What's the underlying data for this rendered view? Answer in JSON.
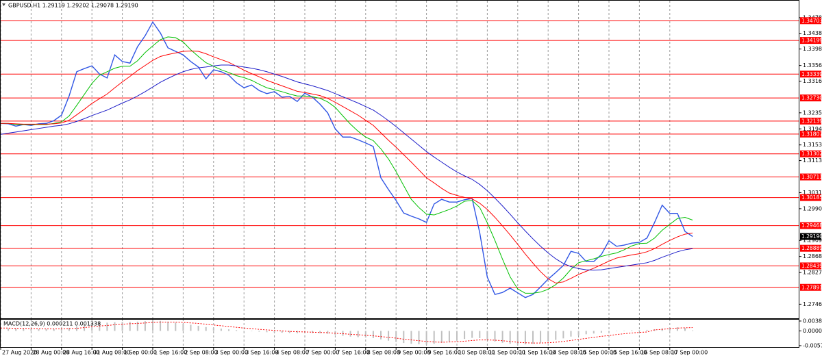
{
  "chart_data": [
    {
      "type": "line",
      "title": "GBPUSD,H1  1.29119 1.29202 1.29078 1.29190",
      "categories": [
        "27 Aug 2020",
        null,
        null,
        null,
        "28 Aug 00:00",
        null,
        null,
        null,
        "28 Aug 16:00",
        null,
        null,
        null,
        "31 Aug 08:00",
        null,
        null,
        null,
        "1 Sep 00:00",
        null,
        null,
        null,
        "1 Sep 16:00",
        null,
        null,
        null,
        "2 Sep 08:00",
        null,
        null,
        null,
        "3 Sep 00:00",
        null,
        null,
        null,
        "3 Sep 16:00",
        null,
        null,
        null,
        "4 Sep 08:00",
        null,
        null,
        null,
        "7 Sep 00:00",
        null,
        null,
        null,
        "7 Sep 16:00",
        null,
        null,
        null,
        "8 Sep 08:00",
        null,
        null,
        null,
        "9 Sep 00:00",
        null,
        null,
        null,
        "9 Sep 16:00",
        null,
        null,
        null,
        "10 Sep 08:00",
        null,
        null,
        null,
        "11 Sep 00:00",
        null,
        null,
        null,
        "11 Sep 16:00",
        null,
        null,
        null,
        "14 Sep 08:00",
        null,
        null,
        null,
        "15 Sep 00:00",
        null,
        null,
        null,
        "15 Sep 16:00",
        null,
        null,
        null,
        "16 Sep 08:00",
        null,
        null,
        null,
        "17 Sep 00:00",
        null,
        null,
        null
      ],
      "series": [
        {
          "color": "#2f55e4",
          "width": 1.4,
          "values": [
            1.3208,
            1.3207,
            1.3201,
            1.3205,
            1.3203,
            1.3207,
            1.3208,
            1.3215,
            1.3229,
            1.3278,
            1.334,
            1.3348,
            1.3355,
            1.3334,
            1.3324,
            1.3383,
            1.3366,
            1.3362,
            1.3404,
            1.3432,
            1.3467,
            1.3439,
            1.3401,
            1.3392,
            1.3383,
            1.3366,
            1.3352,
            1.3322,
            1.3345,
            1.334,
            1.3331,
            1.3312,
            1.3299,
            1.3306,
            1.3292,
            1.3284,
            1.3289,
            1.3275,
            1.3277,
            1.3264,
            1.3285,
            1.3275,
            1.3257,
            1.3235,
            1.3194,
            1.3173,
            1.3173,
            1.3166,
            1.3158,
            1.3149,
            1.3069,
            1.3039,
            1.3011,
            1.2979,
            1.2971,
            1.2964,
            1.2955,
            1.3002,
            1.3014,
            1.3007,
            1.3007,
            1.3013,
            1.3016,
            1.2929,
            1.2815,
            1.2771,
            1.2776,
            1.2787,
            1.2775,
            1.2763,
            1.2771,
            1.279,
            1.281,
            1.2827,
            1.2845,
            1.2881,
            1.2876,
            1.2855,
            1.2855,
            1.2873,
            1.2908,
            1.2894,
            1.2897,
            1.2902,
            1.2904,
            1.2915,
            1.2955,
            1.2999,
            1.2978,
            1.2978,
            1.2932,
            1.2919
          ]
        },
        {
          "color": "#00c000",
          "width": 1,
          "values": [
            1.3208,
            1.3208,
            1.3205,
            1.3205,
            1.3205,
            1.3205,
            1.3205,
            1.3208,
            1.3212,
            1.3227,
            1.3254,
            1.3282,
            1.331,
            1.3331,
            1.334,
            1.3349,
            1.3354,
            1.3354,
            1.3368,
            1.3389,
            1.3406,
            1.3422,
            1.3429,
            1.3427,
            1.3416,
            1.3396,
            1.3379,
            1.3363,
            1.3354,
            1.3345,
            1.3338,
            1.333,
            1.3325,
            1.3318,
            1.3308,
            1.3299,
            1.3294,
            1.3289,
            1.3283,
            1.3278,
            1.3278,
            1.3276,
            1.3272,
            1.3263,
            1.3249,
            1.3227,
            1.3206,
            1.3188,
            1.3173,
            1.3164,
            1.3143,
            1.3117,
            1.3085,
            1.3049,
            1.3014,
            1.2993,
            1.2976,
            1.2974,
            1.2981,
            1.2988,
            1.2997,
            1.3009,
            1.3011,
            1.2993,
            1.2954,
            1.2909,
            1.2861,
            1.2816,
            1.2785,
            1.2774,
            1.2774,
            1.2777,
            1.2784,
            1.2796,
            1.2813,
            1.2835,
            1.2852,
            1.2857,
            1.2862,
            1.2868,
            1.2873,
            1.2877,
            1.2885,
            1.2895,
            1.2901,
            1.2902,
            1.2915,
            1.2935,
            1.295,
            1.2965,
            1.2968,
            1.2961
          ]
        },
        {
          "color": "#ff0000",
          "width": 1,
          "values": [
            1.3208,
            1.3208,
            1.3207,
            1.3206,
            1.3206,
            1.3206,
            1.3206,
            1.3207,
            1.3209,
            1.3216,
            1.323,
            1.3244,
            1.3259,
            1.3271,
            1.3283,
            1.3299,
            1.3314,
            1.3328,
            1.3343,
            1.3356,
            1.3369,
            1.3379,
            1.3384,
            1.3388,
            1.3392,
            1.3393,
            1.3392,
            1.3386,
            1.3378,
            1.3371,
            1.3364,
            1.3354,
            1.3344,
            1.3335,
            1.3327,
            1.3318,
            1.3311,
            1.3304,
            1.3297,
            1.329,
            1.3287,
            1.3283,
            1.3279,
            1.3272,
            1.3262,
            1.3251,
            1.324,
            1.3229,
            1.3216,
            1.3203,
            1.3184,
            1.3165,
            1.3147,
            1.3128,
            1.3109,
            1.3089,
            1.3069,
            1.3056,
            1.3042,
            1.303,
            1.3024,
            1.3019,
            1.3015,
            1.3004,
            1.2988,
            1.2968,
            1.2946,
            1.2923,
            1.2899,
            1.2874,
            1.2851,
            1.2829,
            1.2811,
            1.28,
            1.2803,
            1.2812,
            1.2822,
            1.283,
            1.2838,
            1.2847,
            1.2856,
            1.2864,
            1.2868,
            1.2872,
            1.2875,
            1.288,
            1.2888,
            1.2899,
            1.2909,
            1.2918,
            1.2925,
            1.2928
          ]
        },
        {
          "color": "#1c1cc8",
          "width": 1,
          "values": [
            1.318,
            1.3183,
            1.3186,
            1.3189,
            1.3192,
            1.3195,
            1.3198,
            1.3201,
            1.3203,
            1.3207,
            1.3213,
            1.322,
            1.3228,
            1.3235,
            1.3242,
            1.3251,
            1.326,
            1.3268,
            1.3278,
            1.3289,
            1.3301,
            1.3313,
            1.3323,
            1.3332,
            1.334,
            1.3346,
            1.335,
            1.3352,
            1.3355,
            1.3357,
            1.3357,
            1.3355,
            1.3352,
            1.3349,
            1.3345,
            1.334,
            1.3334,
            1.3328,
            1.3321,
            1.3314,
            1.3309,
            1.3304,
            1.3298,
            1.3292,
            1.3284,
            1.3276,
            1.3268,
            1.326,
            1.3251,
            1.3242,
            1.3229,
            1.3215,
            1.32,
            1.3184,
            1.3168,
            1.3152,
            1.3136,
            1.3122,
            1.3109,
            1.3096,
            1.3084,
            1.3074,
            1.3065,
            1.3052,
            1.3036,
            1.3017,
            1.2997,
            1.2976,
            1.2954,
            1.2933,
            1.2913,
            1.2894,
            1.2877,
            1.2862,
            1.285,
            1.2842,
            1.2837,
            1.2834,
            1.2833,
            1.2834,
            1.2837,
            1.284,
            1.2843,
            1.2846,
            1.2849,
            1.2852,
            1.2858,
            1.2866,
            1.2873,
            1.288,
            1.2885,
            1.2888
          ]
        }
      ],
      "ylim": [
        1.271,
        1.3518
      ],
      "yticks": [
        {
          "value": 1.3478,
          "label": "1.34780"
        },
        {
          "value": 1.3438,
          "label": "1.34380"
        },
        {
          "value": 1.3398,
          "label": "1.33980"
        },
        {
          "value": 1.3356,
          "label": "1.33560"
        },
        {
          "value": 1.3316,
          "label": "1.33160"
        },
        {
          "value": 1.3235,
          "label": "1.32350"
        },
        {
          "value": 1.3194,
          "label": "1.31940"
        },
        {
          "value": 1.3153,
          "label": "1.31530"
        },
        {
          "value": 1.3113,
          "label": "1.31130"
        },
        {
          "value": 1.3031,
          "label": "1.30310"
        },
        {
          "value": 1.299,
          "label": "1.29900"
        },
        {
          "value": 1.2909,
          "label": "1.29090"
        },
        {
          "value": 1.2868,
          "label": "1.28680"
        },
        {
          "value": 1.2827,
          "label": "1.28270"
        },
        {
          "value": 1.2746,
          "label": "1.27460"
        }
      ],
      "levels": [
        1.34703,
        1.34199,
        1.33339,
        1.3273,
        1.32139,
        1.31807,
        1.31302,
        1.30711,
        1.30185,
        1.29468,
        1.28889,
        1.28439,
        1.27891
      ],
      "level_labels": [
        "1.34703",
        "1.34199",
        "1.33339",
        "1.32730",
        "1.32139",
        "1.31807",
        "1.31302",
        "1.30711",
        "1.30185",
        "1.29468",
        "1.28889",
        "1.28439",
        "1.27891"
      ],
      "level_color": "#ff0000",
      "last_price": {
        "value": 1.2919,
        "label": "1.29190"
      },
      "grid": true
    },
    {
      "type": "bar",
      "title": "MACD(12,26,9) 0.000211 0.001338",
      "series": [
        {
          "type": "bar",
          "color": "#c0c0c0",
          "values": [
            0.001,
            0.001,
            0.0009,
            0.0008,
            0.0008,
            0.0007,
            0.0007,
            0.0007,
            0.0008,
            0.0012,
            0.0018,
            0.0024,
            0.0029,
            0.0031,
            0.0032,
            0.0034,
            0.0035,
            0.0035,
            0.0036,
            0.0038,
            0.004,
            0.0039,
            0.0036,
            0.0032,
            0.0028,
            0.0024,
            0.002,
            0.0015,
            0.0012,
            0.0009,
            0.0006,
            0.0003,
            0.0001,
            -0.0001,
            -0.0003,
            -0.0005,
            -0.0006,
            -0.0007,
            -0.0008,
            -0.0009,
            -0.0008,
            -0.0008,
            -0.0009,
            -0.0011,
            -0.0015,
            -0.0019,
            -0.0022,
            -0.0024,
            -0.0026,
            -0.0028,
            -0.0033,
            -0.0038,
            -0.0043,
            -0.0047,
            -0.005,
            -0.0052,
            -0.0053,
            -0.005,
            -0.0046,
            -0.0041,
            -0.0036,
            -0.0031,
            -0.0027,
            -0.0028,
            -0.0034,
            -0.0041,
            -0.0046,
            -0.005,
            -0.0052,
            -0.0052,
            -0.005,
            -0.0046,
            -0.0041,
            -0.0035,
            -0.0029,
            -0.0022,
            -0.0017,
            -0.0013,
            -0.001,
            -0.0007,
            -0.0003,
            -0.0001,
            0.0001,
            0.0002,
            0.0003,
            0.0004,
            0.0006,
            0.001,
            0.0013,
            0.0014,
            0.0011,
            0.0002
          ]
        },
        {
          "type": "line",
          "color": "#ff0000",
          "values": [
            0.0011,
            0.0011,
            0.001,
            0.001,
            0.0009,
            0.0009,
            0.0008,
            0.0008,
            0.0008,
            0.0009,
            0.001,
            0.0013,
            0.0016,
            0.0019,
            0.0021,
            0.0024,
            0.0026,
            0.0028,
            0.0029,
            0.0031,
            0.0033,
            0.0034,
            0.0034,
            0.0034,
            0.0033,
            0.0031,
            0.0029,
            0.0026,
            0.0023,
            0.002,
            0.0017,
            0.0014,
            0.0011,
            0.0009,
            0.0006,
            0.0004,
            0.0002,
            0.0,
            -0.0002,
            -0.0003,
            -0.0004,
            -0.0005,
            -0.0006,
            -0.0007,
            -0.0009,
            -0.0011,
            -0.0013,
            -0.0015,
            -0.0017,
            -0.0019,
            -0.0022,
            -0.0025,
            -0.0028,
            -0.0032,
            -0.0035,
            -0.0038,
            -0.0041,
            -0.0043,
            -0.0044,
            -0.0043,
            -0.0042,
            -0.004,
            -0.0037,
            -0.0035,
            -0.0035,
            -0.0036,
            -0.0038,
            -0.0041,
            -0.0044,
            -0.0046,
            -0.0047,
            -0.0047,
            -0.0046,
            -0.0044,
            -0.0041,
            -0.0037,
            -0.0033,
            -0.0029,
            -0.0025,
            -0.0021,
            -0.0018,
            -0.0014,
            -0.0011,
            -0.0008,
            -0.0006,
            -0.0004,
            0.0004,
            0.0006,
            0.0009,
            0.0011,
            0.0012,
            0.0013
          ]
        }
      ],
      "ylim": [
        -0.006,
        0.0041
      ],
      "yticks": [
        0.003843,
        {
          "value": 0,
          "label": "0.000000"
        },
        -0.005722
      ]
    }
  ]
}
